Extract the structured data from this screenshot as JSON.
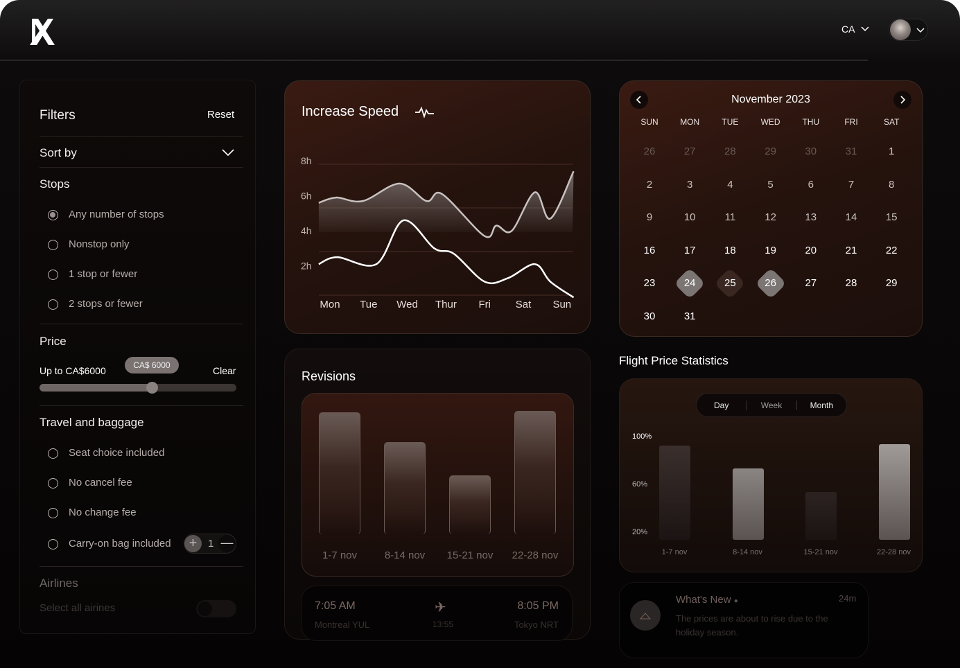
{
  "header": {
    "region": "CA",
    "logo": "X-logo",
    "avatar": "user-avatar"
  },
  "filters": {
    "title": "Filters",
    "reset": "Reset",
    "sort_by": "Sort by",
    "stops_title": "Stops",
    "stops": [
      {
        "label": "Any number of stops",
        "selected": true
      },
      {
        "label": "Nonstop only",
        "selected": false
      },
      {
        "label": "1 stop or fewer",
        "selected": false
      },
      {
        "label": "2 stops or fewer",
        "selected": false
      }
    ],
    "price_title": "Price",
    "price_label": "Up to CA$6000",
    "price_tooltip": "CA$ 6000",
    "clear": "Clear",
    "price_slider_percent": 57,
    "baggage_title": "Travel and baggage",
    "baggage": [
      {
        "label": "Seat choice included"
      },
      {
        "label": "No cancel fee"
      },
      {
        "label": "No change fee"
      },
      {
        "label": "Carry-on bag included"
      }
    ],
    "carry_on_count": "1",
    "airlines_title": "Airlines",
    "select_all": "Select all airines",
    "select_all_on": false
  },
  "speed": {
    "title": "Increase Speed",
    "icon": "activity-pulse-icon"
  },
  "revisions": {
    "title": "Revisions"
  },
  "calendar": {
    "month": "November 2023",
    "weekdays": [
      "SUN",
      "MON",
      "TUE",
      "WED",
      "THU",
      "FRI",
      "SAT"
    ],
    "weeks": [
      [
        "26",
        "27",
        "28",
        "29",
        "30",
        "31",
        "1"
      ],
      [
        "2",
        "3",
        "4",
        "5",
        "6",
        "7",
        "8"
      ],
      [
        "9",
        "10",
        "11",
        "12",
        "13",
        "14",
        "15"
      ],
      [
        "16",
        "17",
        "18",
        "19",
        "20",
        "21",
        "22"
      ],
      [
        "23",
        "24",
        "25",
        "26",
        "27",
        "28",
        "29"
      ],
      [
        "30",
        "31"
      ]
    ],
    "selected": [
      "24",
      "26"
    ],
    "in_range": [
      "25"
    ]
  },
  "flight_stats": {
    "title": "Flight Price Statistics",
    "tabs": [
      "Day",
      "Week",
      "Month"
    ]
  },
  "flight": {
    "depart_time": "7:05 AM",
    "depart_city": "Montreal YUL",
    "duration": "13:55",
    "arrive_time": "8:05 PM",
    "arrive_city": "Tokyo NRT"
  },
  "news": {
    "title": "What's New",
    "time": "24m",
    "body": "The prices are about to rise due to the holiday season."
  },
  "chart_data": [
    {
      "type": "line",
      "title": "Increase Speed",
      "categories": [
        "Mon",
        "Tue",
        "Wed",
        "Thur",
        "Fri",
        "Sat",
        "Sun"
      ],
      "yticks": [
        "8h",
        "6h",
        "4h",
        "2h"
      ],
      "ylim": [
        0,
        8
      ],
      "grid": true,
      "series": [
        {
          "points": [
            [
              -0.29,
              5.8
            ],
            [
              0.16,
              6.1
            ],
            [
              0.85,
              5.9
            ],
            [
              1.8,
              6.9
            ],
            [
              2.5,
              5.9
            ],
            [
              2.9,
              6.3
            ],
            [
              4.0,
              3.9
            ],
            [
              4.3,
              4.5
            ],
            [
              4.7,
              4.2
            ],
            [
              5.3,
              6.4
            ],
            [
              5.7,
              4.9
            ],
            [
              6.3,
              7.6
            ]
          ]
        },
        {
          "points": [
            [
              -0.29,
              2.3
            ],
            [
              0.19,
              2.7
            ],
            [
              1.2,
              2.3
            ],
            [
              1.9,
              4.8
            ],
            [
              2.7,
              3.2
            ],
            [
              3.2,
              2.9
            ],
            [
              4.0,
              1.3
            ],
            [
              4.6,
              1.5
            ],
            [
              5.3,
              2.3
            ],
            [
              5.7,
              1.3
            ],
            [
              6.3,
              0.4
            ]
          ]
        }
      ]
    },
    {
      "type": "bar",
      "title": "Revisions",
      "categories": [
        "1-7 nov",
        "8-14 nov",
        "15-21 nov",
        "22-28 nov"
      ],
      "values": [
        99,
        75,
        48,
        100
      ]
    },
    {
      "type": "bar",
      "title": "Flight Price Statistics",
      "categories": [
        "1-7 nov",
        "8-14 nov",
        "15-21 nov",
        "22-28 nov"
      ],
      "yticks": [
        "100%",
        "60%",
        "20%"
      ],
      "ylim": [
        14,
        100
      ],
      "values": [
        93,
        74,
        54,
        94
      ]
    }
  ]
}
